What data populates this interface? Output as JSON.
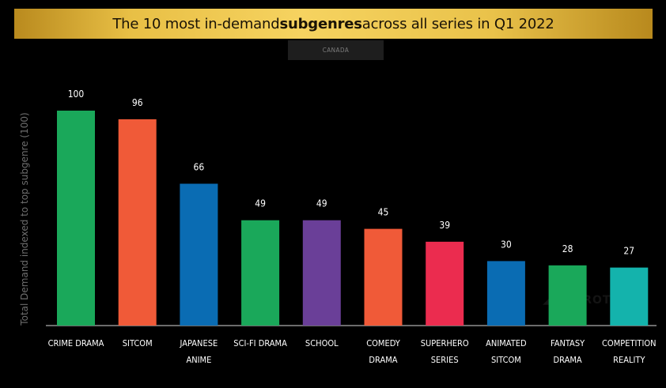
{
  "header": {
    "title_pre": "The 10 most in-demand ",
    "title_bold": "subgenres",
    "title_post": " across all series in Q1 2022",
    "region": "CANADA"
  },
  "chart_data": {
    "type": "bar",
    "title": "The 10 most in-demand subgenres across all series in Q1 2022",
    "subtitle": "CANADA",
    "ylabel": "Total Demand indexed to top subgenre (100)",
    "xlabel": "",
    "ylim": [
      0,
      100
    ],
    "grid": false,
    "categories": [
      [
        "CRIME DRAMA"
      ],
      [
        "SITCOM"
      ],
      [
        "JAPANESE",
        "ANIME"
      ],
      [
        "SCI-FI DRAMA"
      ],
      [
        "SCHOOL"
      ],
      [
        "COMEDY",
        "DRAMA"
      ],
      [
        "SUPERHERO",
        "SERIES"
      ],
      [
        "ANIMATED",
        "SITCOM"
      ],
      [
        "FANTASY",
        "DRAMA"
      ],
      [
        "COMPETITION",
        "REALITY"
      ]
    ],
    "values": [
      100,
      96,
      66,
      49,
      49,
      45,
      39,
      30,
      28,
      27
    ],
    "colors": [
      "#1aa85a",
      "#f05a38",
      "#0a6cb3",
      "#1aa85a",
      "#6a3f98",
      "#f05a38",
      "#eb2c4f",
      "#0a6cb3",
      "#1aa85a",
      "#14b3ac"
    ]
  }
}
